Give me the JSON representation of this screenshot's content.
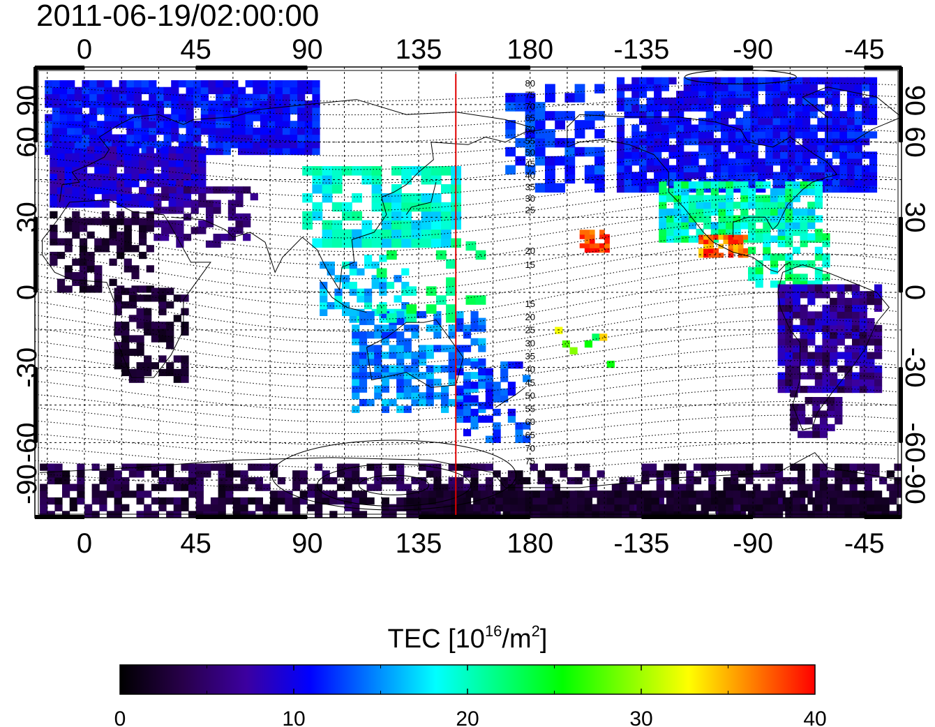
{
  "title": "2011-06-19/02:00:00",
  "map": {
    "top_lon_labels": [
      "0",
      "45",
      "90",
      "135",
      "180",
      "-135",
      "-90",
      "-45"
    ],
    "bottom_lon_labels": [
      "0",
      "45",
      "90",
      "135",
      "180",
      "-135",
      "-90",
      "-45"
    ],
    "left_lat_labels": [
      "90",
      "60",
      "30",
      "0",
      "-30",
      "-60",
      "-90"
    ],
    "right_lat_labels": [
      "90",
      "60",
      "30",
      "0",
      "-30",
      "-60",
      "-90"
    ],
    "lon_ticks_deg": [
      0,
      45,
      90,
      135,
      180,
      225,
      270,
      315
    ],
    "lat_ticks_deg": [
      90,
      60,
      30,
      0,
      -30,
      -60,
      -90
    ],
    "lon_range": [
      -20,
      330
    ],
    "lat_range": [
      -90,
      90
    ],
    "grid_lon_step": 15,
    "grid_lat_step": 15,
    "grid": "dotted",
    "vertical_marker_lon": 150,
    "marker_color": "#e00000",
    "mlat_labels_north": [
      "80",
      "75",
      "70",
      "65",
      "60",
      "55",
      "50",
      "45",
      "40",
      "35",
      "30",
      "25",
      "20",
      "15"
    ],
    "mlat_labels_south": [
      "15",
      "20",
      "25",
      "30",
      "35",
      "40",
      "45",
      "50",
      "55",
      "60",
      "65",
      "70",
      "75"
    ]
  },
  "colorbar": {
    "label_main": "TEC  [10",
    "label_sup": "16",
    "label_unit": "/m",
    "label_sup2": "2",
    "label_close": "]",
    "ticks": [
      "0",
      "10",
      "20",
      "30",
      "40"
    ],
    "range": [
      0,
      40
    ],
    "stops": [
      "#000000",
      "#28004a",
      "#3c00a0",
      "#0000ff",
      "#0080ff",
      "#00ffff",
      "#00ff80",
      "#00ff00",
      "#80ff00",
      "#ffff00",
      "#ff8000",
      "#ff0000"
    ]
  }
}
